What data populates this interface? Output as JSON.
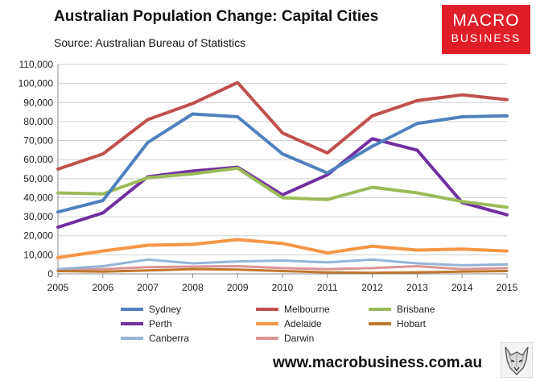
{
  "header": {
    "title": "Australian Population Change: Capital Cities",
    "source": "Source: Australian Bureau of Statistics"
  },
  "logo": {
    "line1": "MACRO",
    "line2": "BUSINESS",
    "color": "#e01e2a"
  },
  "footer": {
    "url": "www.macrobusiness.com.au",
    "icon": "wolf-icon"
  },
  "chart_data": {
    "type": "line",
    "x": [
      2005,
      2006,
      2007,
      2008,
      2009,
      2010,
      2011,
      2012,
      2013,
      2014,
      2015
    ],
    "ylim": [
      0,
      110000
    ],
    "yticks": [
      0,
      10000,
      20000,
      30000,
      40000,
      50000,
      60000,
      70000,
      80000,
      90000,
      100000,
      110000
    ],
    "ytick_labels": [
      "0",
      "10,000",
      "20,000",
      "30,000",
      "40,000",
      "50,000",
      "60,000",
      "70,000",
      "80,000",
      "90,000",
      "100,000",
      "110,000"
    ],
    "grid": true,
    "legend_position": "bottom",
    "series": [
      {
        "name": "Sydney",
        "color": "#4f81bd",
        "values": [
          32500,
          38500,
          69000,
          84000,
          82500,
          63000,
          53000,
          67000,
          79000,
          82500,
          83000
        ]
      },
      {
        "name": "Melbourne",
        "color": "#c0504d",
        "values": [
          55000,
          63000,
          81000,
          89500,
          100500,
          74000,
          63500,
          83000,
          91000,
          94000,
          91500
        ]
      },
      {
        "name": "Brisbane",
        "color": "#9bbb59",
        "values": [
          42500,
          42000,
          50500,
          52500,
          55500,
          40000,
          39000,
          45500,
          42500,
          38000,
          35000
        ]
      },
      {
        "name": "Perth",
        "color": "#7030a0",
        "values": [
          24500,
          32000,
          51000,
          54000,
          56000,
          41500,
          52000,
          71000,
          65000,
          37500,
          31000
        ]
      },
      {
        "name": "Adelaide",
        "color": "#f79646",
        "values": [
          8500,
          12000,
          15000,
          15500,
          18000,
          16000,
          11000,
          14500,
          12500,
          13000,
          12000
        ]
      },
      {
        "name": "Hobart",
        "color": "#c0772b",
        "values": [
          1500,
          1200,
          1800,
          2500,
          2200,
          1500,
          800,
          500,
          800,
          1200,
          1500
        ]
      },
      {
        "name": "Canberra",
        "color": "#95b3d7",
        "values": [
          2500,
          4000,
          7500,
          5500,
          6500,
          7000,
          6000,
          7500,
          5500,
          4500,
          5000
        ]
      },
      {
        "name": "Darwin",
        "color": "#d99594",
        "values": [
          2000,
          2500,
          3500,
          3800,
          4000,
          3000,
          2500,
          3000,
          4000,
          2500,
          3000
        ]
      }
    ]
  }
}
